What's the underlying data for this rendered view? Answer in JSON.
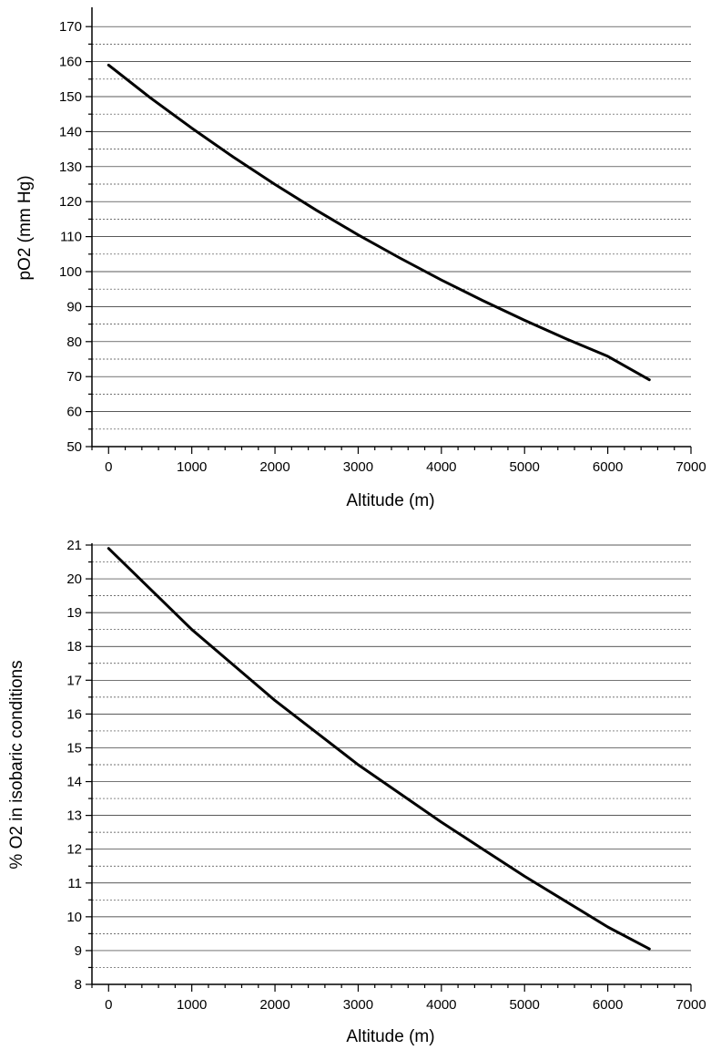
{
  "chart_data": [
    {
      "type": "line",
      "xlabel": "Altitude (m)",
      "ylabel": "pO2 (mm Hg)",
      "xlim": [
        -200,
        7000
      ],
      "ylim": [
        50,
        175
      ],
      "xticks": [
        0,
        1000,
        2000,
        3000,
        4000,
        5000,
        6000,
        7000
      ],
      "yticks": [
        50,
        60,
        70,
        80,
        90,
        100,
        110,
        120,
        130,
        140,
        150,
        160,
        170
      ],
      "grid": true,
      "series": [
        {
          "color": "#000000",
          "x": [
            0,
            500,
            1000,
            1500,
            2000,
            2500,
            3000,
            3500,
            4000,
            4500,
            5000,
            5500,
            6000,
            6500
          ],
          "y": [
            159,
            149.7,
            141,
            132.7,
            124.9,
            117.5,
            110.5,
            103.9,
            97.6,
            91.7,
            86.1,
            80.8,
            75.8,
            69.1
          ]
        }
      ]
    },
    {
      "type": "line",
      "xlabel": "Altitude (m)",
      "ylabel": "% O2 in isobaric conditions",
      "xlim": [
        -200,
        7000
      ],
      "ylim": [
        8,
        21
      ],
      "xticks": [
        0,
        1000,
        2000,
        3000,
        4000,
        5000,
        6000,
        7000
      ],
      "yticks": [
        8,
        9,
        10,
        11,
        12,
        13,
        14,
        15,
        16,
        17,
        18,
        19,
        20,
        21
      ],
      "grid": true,
      "series": [
        {
          "color": "#000000",
          "x": [
            0,
            500,
            1000,
            1500,
            2000,
            2500,
            3000,
            3500,
            4000,
            4500,
            5000,
            5500,
            6000,
            6500
          ],
          "y": [
            20.9,
            19.7,
            18.5,
            17.45,
            16.4,
            15.45,
            14.5,
            13.65,
            12.8,
            12.0,
            11.2,
            10.45,
            9.7,
            9.05
          ]
        }
      ]
    }
  ]
}
